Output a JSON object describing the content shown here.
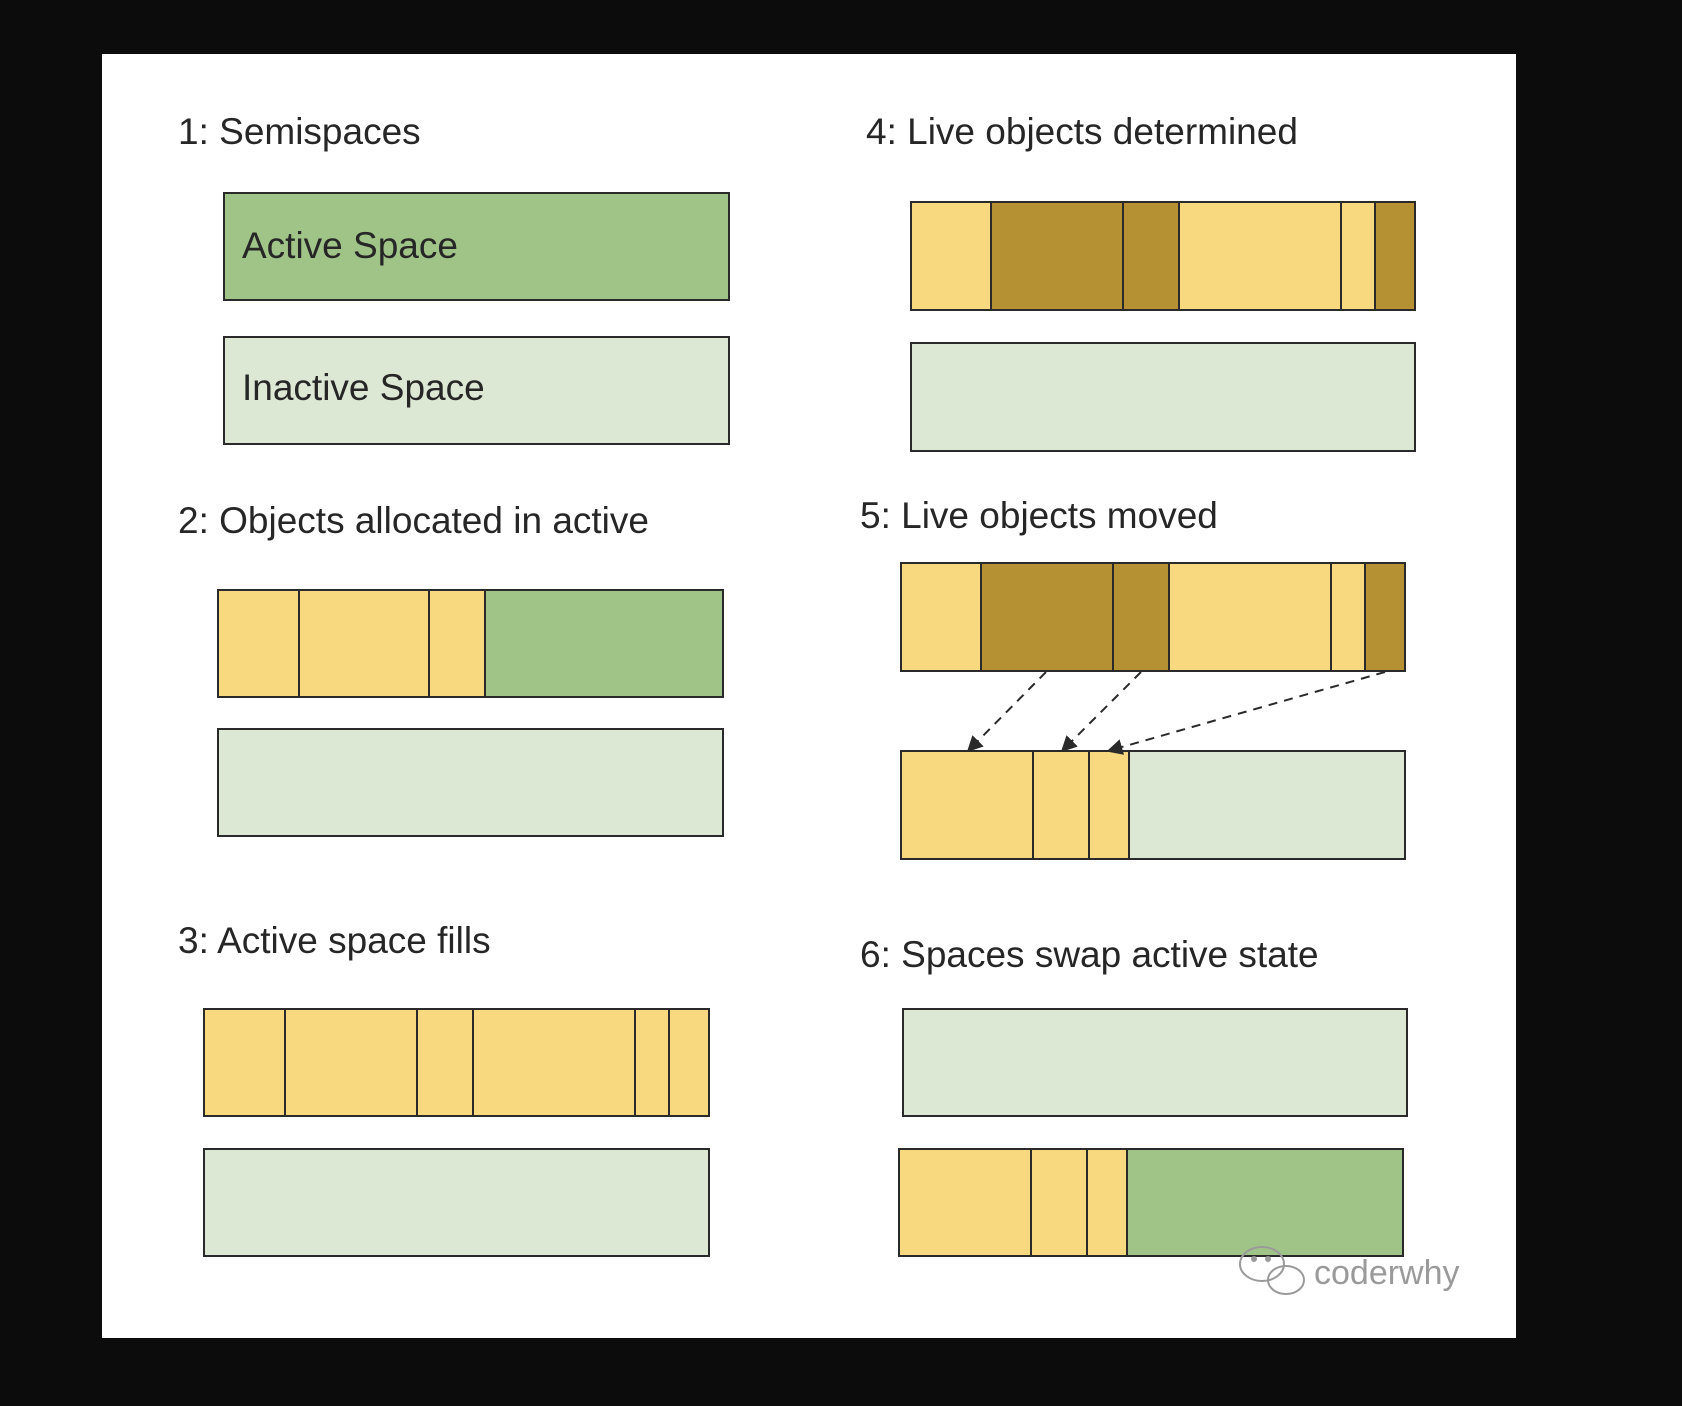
{
  "colors": {
    "background": "#0c0c0c",
    "panel": "#ffffff",
    "active": "#a0c488",
    "inactive": "#dce8d4",
    "object": "#f9d97f",
    "live_object": "#b69133",
    "border": "#2a2a2a",
    "text": "#262626",
    "watermark": "#9a9a9a"
  },
  "panels": [
    {
      "id": "1",
      "title": "1: Semispaces",
      "top_label": "Active Space",
      "bottom_label": "Inactive Space"
    },
    {
      "id": "2",
      "title": "2: Objects allocated in active"
    },
    {
      "id": "3",
      "title": "3: Active space fills"
    },
    {
      "id": "4",
      "title": "4: Live objects determined"
    },
    {
      "id": "5",
      "title": "5: Live objects moved"
    },
    {
      "id": "6",
      "title": "6: Spaces swap active state"
    }
  ],
  "watermark": {
    "text": "coderwhy",
    "icon": "wechat-icon"
  }
}
